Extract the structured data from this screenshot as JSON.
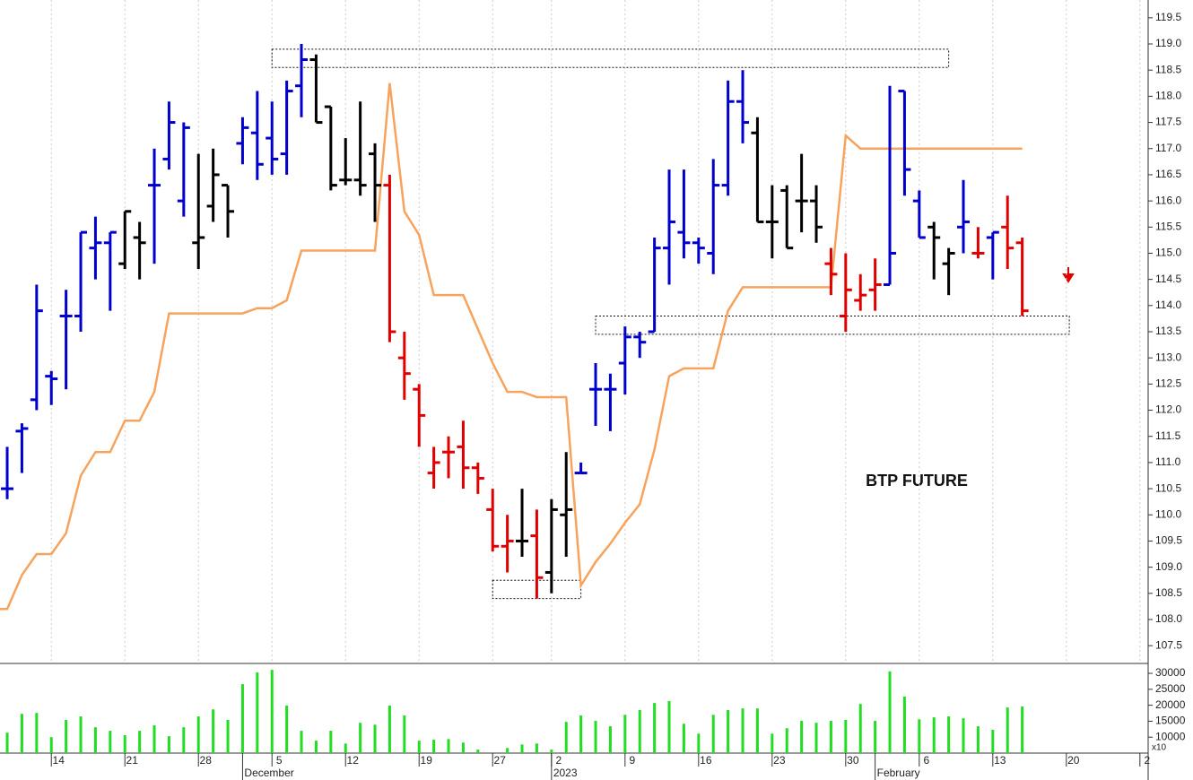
{
  "chart_data": [
    {
      "type": "ohlc",
      "annotation": "BTP FUTURE",
      "x": [
        0,
        1,
        2,
        3,
        4,
        5,
        6,
        7,
        8,
        9,
        10,
        11,
        12,
        13,
        14,
        15,
        16,
        17,
        18,
        19,
        20,
        21,
        22,
        23,
        24,
        25,
        26,
        27,
        28,
        29,
        30,
        31,
        32,
        33,
        34,
        35,
        36,
        37,
        38,
        39,
        40,
        41,
        42,
        43,
        44,
        45,
        46,
        47,
        48,
        49,
        50,
        51,
        52,
        53,
        54,
        55,
        56,
        57,
        58,
        59,
        60,
        61,
        62,
        63,
        64,
        65,
        66,
        67,
        68,
        69
      ],
      "open": [
        110.5,
        111.6,
        112.2,
        112.65,
        113.8,
        113.8,
        115.1,
        115.2,
        114.8,
        115.3,
        116.3,
        116.8,
        116.0,
        115.2,
        115.9,
        116.3,
        117.1,
        117.3,
        117.2,
        116.9,
        118.2,
        118.7,
        117.8,
        116.4,
        116.4,
        116.9,
        116.3,
        113.0,
        112.4,
        110.8,
        111.2,
        111.3,
        110.9,
        110.1,
        109.4,
        109.5,
        109.6,
        108.9,
        110.0,
        110.8,
        112.4,
        112.4,
        112.9,
        113.4,
        113.5,
        115.1,
        115.4,
        115.2,
        115.0,
        116.3,
        117.9,
        117.3,
        115.6,
        116.2,
        116.0,
        116.0,
        114.8,
        113.8,
        114.1,
        114.3,
        114.4,
        118.1,
        116.0,
        115.5,
        114.8,
        115.5,
        115.0,
        115.3,
        115.5,
        115.2
      ],
      "high": [
        111.3,
        111.75,
        114.4,
        112.75,
        114.3,
        115.4,
        115.7,
        115.4,
        115.8,
        115.6,
        117.0,
        117.9,
        117.5,
        116.9,
        117.0,
        116.3,
        117.6,
        118.1,
        117.9,
        118.3,
        119.0,
        118.8,
        117.8,
        117.2,
        117.9,
        117.1,
        116.5,
        113.5,
        112.5,
        111.3,
        111.5,
        111.8,
        111.0,
        110.5,
        110.0,
        110.5,
        110.1,
        110.3,
        111.2,
        111.0,
        112.9,
        112.7,
        113.6,
        113.5,
        115.3,
        116.6,
        116.6,
        115.3,
        116.8,
        118.3,
        118.5,
        117.6,
        116.3,
        116.3,
        116.9,
        116.3,
        115.1,
        115.0,
        114.6,
        114.9,
        118.2,
        118.1,
        116.2,
        115.6,
        115.1,
        116.4,
        115.5,
        115.4,
        116.1,
        115.3
      ],
      "low": [
        110.3,
        110.8,
        112.0,
        112.1,
        112.4,
        113.5,
        114.5,
        113.9,
        114.7,
        114.5,
        114.8,
        116.6,
        115.7,
        114.7,
        115.6,
        115.3,
        116.7,
        116.4,
        116.5,
        116.5,
        117.6,
        117.5,
        116.2,
        116.3,
        116.1,
        115.6,
        113.3,
        112.2,
        111.3,
        110.5,
        110.7,
        110.5,
        110.4,
        109.3,
        108.9,
        109.2,
        108.4,
        108.5,
        109.2,
        110.8,
        111.7,
        111.6,
        112.3,
        113.0,
        113.5,
        114.4,
        114.9,
        114.8,
        114.6,
        116.1,
        117.1,
        115.6,
        114.9,
        115.1,
        115.4,
        115.2,
        114.2,
        113.5,
        113.9,
        113.9,
        114.4,
        116.1,
        115.3,
        114.5,
        114.2,
        115.0,
        114.9,
        114.5,
        114.7,
        113.8
      ],
      "close": [
        110.5,
        111.65,
        113.9,
        112.6,
        113.8,
        115.4,
        115.2,
        115.4,
        115.8,
        115.2,
        116.3,
        117.5,
        117.4,
        115.3,
        116.5,
        115.8,
        117.4,
        116.7,
        116.8,
        118.1,
        118.7,
        117.5,
        116.3,
        116.4,
        116.3,
        116.3,
        113.5,
        112.7,
        111.9,
        111.0,
        111.2,
        110.9,
        110.7,
        109.4,
        109.5,
        109.5,
        108.8,
        110.1,
        110.1,
        110.8,
        112.4,
        112.4,
        113.4,
        113.3,
        115.1,
        115.6,
        115.2,
        115.1,
        116.3,
        117.9,
        117.5,
        115.6,
        115.6,
        115.1,
        116.0,
        115.5,
        114.6,
        114.3,
        114.2,
        114.4,
        115.0,
        116.6,
        115.3,
        115.3,
        115.0,
        115.6,
        115.0,
        115.4,
        115.1,
        113.9
      ],
      "colors": [
        "#0000cc",
        "#0000cc",
        "#0000cc",
        "#0000cc",
        "#0000cc",
        "#0000cc",
        "#0000cc",
        "#0000cc",
        "#000000",
        "#000000",
        "#0000cc",
        "#0000cc",
        "#0000cc",
        "#000000",
        "#000000",
        "#000000",
        "#0000cc",
        "#0000cc",
        "#0000cc",
        "#0000cc",
        "#0000cc",
        "#000000",
        "#000000",
        "#000000",
        "#000000",
        "#000000",
        "#e00000",
        "#e00000",
        "#e00000",
        "#e00000",
        "#e00000",
        "#e00000",
        "#e00000",
        "#e00000",
        "#e00000",
        "#000000",
        "#e00000",
        "#000000",
        "#000000",
        "#0000cc",
        "#0000cc",
        "#0000cc",
        "#0000cc",
        "#0000cc",
        "#0000cc",
        "#0000cc",
        "#0000cc",
        "#0000cc",
        "#0000cc",
        "#0000cc",
        "#0000cc",
        "#000000",
        "#000000",
        "#000000",
        "#000000",
        "#000000",
        "#e00000",
        "#e00000",
        "#e00000",
        "#e00000",
        "#0000cc",
        "#0000cc",
        "#0000cc",
        "#000000",
        "#000000",
        "#0000cc",
        "#e00000",
        "#0000cc",
        "#e00000",
        "#e00000"
      ],
      "stop": {
        "color": "#f7a35c",
        "x": [
          -0.5,
          0,
          1,
          2,
          3,
          4,
          5,
          6,
          7,
          8,
          9,
          10,
          11,
          16,
          17,
          18,
          19,
          20,
          25,
          26,
          27,
          28,
          29,
          31,
          33,
          34,
          35,
          36,
          38,
          39,
          40,
          41,
          42,
          43,
          44,
          45,
          46,
          48,
          49,
          50,
          56,
          57,
          58,
          69
        ],
        "values": [
          108.2,
          108.2,
          108.85,
          109.25,
          109.25,
          109.65,
          110.75,
          111.2,
          111.2,
          111.8,
          111.8,
          112.35,
          113.85,
          113.85,
          113.95,
          113.95,
          114.1,
          115.05,
          115.05,
          118.25,
          115.8,
          115.35,
          114.2,
          114.2,
          112.9,
          112.35,
          112.35,
          112.25,
          112.25,
          108.65,
          109.1,
          109.45,
          109.85,
          110.2,
          111.25,
          112.65,
          112.8,
          112.8,
          113.9,
          114.35,
          114.35,
          117.25,
          117.0,
          117.0
        ]
      },
      "zones": [
        {
          "x": [
            18,
            64
          ],
          "y": [
            118.55,
            118.9
          ]
        },
        {
          "x": [
            33,
            39
          ],
          "y": [
            108.4,
            108.75
          ]
        },
        {
          "x": [
            40,
            72.2
          ],
          "y": [
            113.45,
            113.8
          ]
        }
      ],
      "xlim": [
        -0.49,
        77.56
      ],
      "ylim": [
        107.16,
        119.84
      ],
      "yticks": [
        107.5,
        {
          "value": 108,
          "label": "108.0"
        },
        108.5,
        {
          "value": 109,
          "label": "109.0"
        },
        109.5,
        {
          "value": 110,
          "label": "110.0"
        },
        110.5,
        {
          "value": 111,
          "label": "111.0"
        },
        111.5,
        {
          "value": 112,
          "label": "112.0"
        },
        112.5,
        {
          "value": 113,
          "label": "113.0"
        },
        113.5,
        {
          "value": 114,
          "label": "114.0"
        },
        114.5,
        {
          "value": 115,
          "label": "115.0"
        },
        115.5,
        {
          "value": 116,
          "label": "116.0"
        },
        116.5,
        {
          "value": 117,
          "label": "117.0"
        },
        117.5,
        {
          "value": 118,
          "label": "118.0"
        },
        118.5,
        {
          "value": 119,
          "label": "119.0"
        },
        119.5
      ]
    },
    {
      "type": "bar",
      "color": "#22dd22",
      "axis_note": "x10",
      "x": [
        0,
        1,
        2,
        3,
        4,
        5,
        6,
        7,
        8,
        9,
        10,
        11,
        12,
        13,
        14,
        15,
        16,
        17,
        18,
        19,
        20,
        21,
        22,
        23,
        24,
        25,
        26,
        27,
        28,
        29,
        30,
        31,
        32,
        33,
        34,
        35,
        36,
        37,
        38,
        39,
        40,
        41,
        42,
        43,
        44,
        45,
        46,
        47,
        48,
        49,
        50,
        51,
        52,
        53,
        54,
        55,
        56,
        57,
        58,
        59,
        60,
        61,
        62,
        63,
        64,
        65,
        66,
        67,
        68,
        69
      ],
      "values": [
        11400,
        17300,
        17600,
        10000,
        15400,
        16500,
        13100,
        12000,
        10600,
        12000,
        13700,
        10300,
        13100,
        16500,
        18700,
        15400,
        26600,
        30300,
        31100,
        19900,
        12000,
        8900,
        12000,
        8000,
        14500,
        13900,
        19900,
        16800,
        8900,
        9200,
        9400,
        8300,
        6100,
        5000,
        6600,
        7700,
        8000,
        6100,
        14800,
        16800,
        15100,
        13400,
        17000,
        18500,
        20700,
        21300,
        14200,
        11100,
        17000,
        18500,
        19000,
        19000,
        11100,
        12800,
        15100,
        14500,
        15100,
        15400,
        20400,
        15100,
        30600,
        22700,
        15600,
        16200,
        16500,
        15900,
        13400,
        12300,
        19300,
        19600
      ],
      "xlim": [
        -0.49,
        77.56
      ],
      "ylim": [
        5000,
        33100
      ],
      "yticks": [
        10000,
        15000,
        20000,
        25000,
        30000
      ],
      "xticks": [
        {
          "value": 3,
          "label": "14"
        },
        {
          "value": 8,
          "label": "21"
        },
        {
          "value": 13,
          "label": "28"
        },
        {
          "value": 18,
          "label": "5"
        },
        {
          "value": 23,
          "label": "12"
        },
        {
          "value": 28,
          "label": "19"
        },
        {
          "value": 33,
          "label": "27"
        },
        {
          "value": 37,
          "label": "2"
        },
        {
          "value": 42,
          "label": "9"
        },
        {
          "value": 47,
          "label": "16"
        },
        {
          "value": 52,
          "label": "23"
        },
        {
          "value": 57,
          "label": "30"
        },
        {
          "value": 62,
          "label": "6"
        },
        {
          "value": 67,
          "label": "13"
        },
        {
          "value": 72,
          "label": "20"
        },
        {
          "value": 77,
          "label": "2"
        }
      ],
      "months": [
        {
          "value": 16,
          "label": "December"
        },
        {
          "value": 37,
          "label": "2023"
        },
        {
          "value": 59,
          "label": "February"
        }
      ]
    }
  ]
}
